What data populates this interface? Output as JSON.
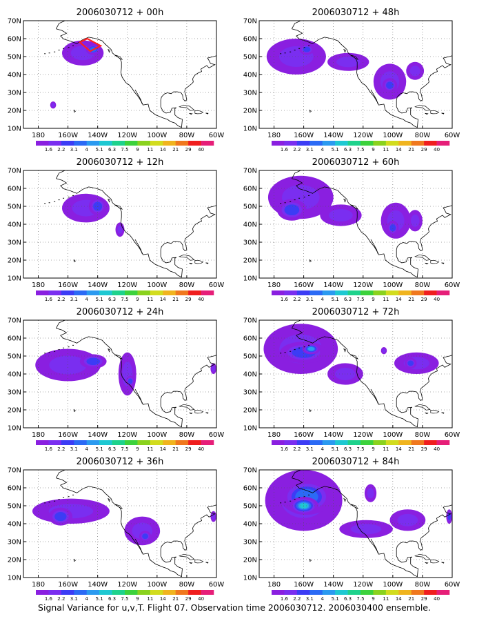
{
  "figure": {
    "caption": "Signal Variance for u,v,T. Flight 07. Observation time 2006030712. 2006030400 ensemble."
  },
  "colorbar": {
    "labels": [
      "1.6",
      "2.2",
      "3.1",
      "4",
      "5.1",
      "6.3",
      "7.5",
      "9",
      "11",
      "14",
      "21",
      "29",
      "40"
    ],
    "colors": [
      "#8a1fe0",
      "#7a2ef0",
      "#3c3cf5",
      "#2b6af5",
      "#2b9af0",
      "#1ec8d2",
      "#1ed28c",
      "#3cd23c",
      "#8ad21e",
      "#d2dc1e",
      "#f0b41e",
      "#f0781e",
      "#f01e1e",
      "#e61e78"
    ]
  },
  "axes": {
    "y_ticks": [
      "70N",
      "60N",
      "50N",
      "40N",
      "30N",
      "20N",
      "10N"
    ],
    "x_ticks": [
      "180",
      "160W",
      "140W",
      "120W",
      "100W",
      "80W",
      "60W"
    ]
  },
  "panels": [
    {
      "title": "2006030712 + 00h",
      "blobs": [
        {
          "lon": -150,
          "lat": 52,
          "rlon": 14,
          "rlat": 7,
          "level": 1
        },
        {
          "lon": -143,
          "lat": 54,
          "rlon": 5,
          "rlat": 3,
          "level": 3
        },
        {
          "lon": -170,
          "lat": 23,
          "rlon": 2,
          "rlat": 2,
          "level": 1
        }
      ],
      "track": [
        [
          -152,
          58
        ],
        [
          -145,
          53
        ],
        [
          -138,
          56
        ],
        [
          -147,
          60
        ]
      ]
    },
    {
      "title": "2006030712 + 12h",
      "blobs": [
        {
          "lon": -148,
          "lat": 49,
          "rlon": 16,
          "rlat": 8,
          "level": 1
        },
        {
          "lon": -140,
          "lat": 50,
          "rlon": 6,
          "rlat": 5,
          "level": 2
        },
        {
          "lon": -125,
          "lat": 37,
          "rlon": 3,
          "rlat": 4,
          "level": 1
        }
      ],
      "track": []
    },
    {
      "title": "2006030712 + 24h",
      "blobs": [
        {
          "lon": -160,
          "lat": 45,
          "rlon": 22,
          "rlat": 9,
          "level": 1
        },
        {
          "lon": -143,
          "lat": 47,
          "rlon": 9,
          "rlat": 4,
          "level": 2
        },
        {
          "lon": -120,
          "lat": 40,
          "rlon": 6,
          "rlat": 12,
          "level": 1
        },
        {
          "lon": -118,
          "lat": 36,
          "rlon": 3,
          "rlat": 3,
          "level": 2
        },
        {
          "lon": -62,
          "lat": 43,
          "rlon": 2,
          "rlat": 3,
          "level": 1
        }
      ],
      "track": []
    },
    {
      "title": "2006030712 + 36h",
      "blobs": [
        {
          "lon": -158,
          "lat": 47,
          "rlon": 26,
          "rlat": 7,
          "level": 1
        },
        {
          "lon": -165,
          "lat": 44,
          "rlon": 8,
          "rlat": 5,
          "level": 2
        },
        {
          "lon": -110,
          "lat": 36,
          "rlon": 12,
          "rlat": 8,
          "level": 1
        },
        {
          "lon": -108,
          "lat": 33,
          "rlon": 4,
          "rlat": 3,
          "level": 2
        },
        {
          "lon": -62,
          "lat": 44,
          "rlon": 2,
          "rlat": 3,
          "level": 1
        }
      ],
      "track": []
    },
    {
      "title": "2006030712 + 48h",
      "blobs": [
        {
          "lon": -165,
          "lat": 50,
          "rlon": 20,
          "rlat": 10,
          "level": 1
        },
        {
          "lon": -158,
          "lat": 54,
          "rlon": 5,
          "rlat": 3,
          "level": 2
        },
        {
          "lon": -130,
          "lat": 47,
          "rlon": 14,
          "rlat": 5,
          "level": 1
        },
        {
          "lon": -102,
          "lat": 36,
          "rlon": 11,
          "rlat": 10,
          "level": 1
        },
        {
          "lon": -102,
          "lat": 34,
          "rlon": 5,
          "rlat": 4,
          "level": 2
        },
        {
          "lon": -85,
          "lat": 42,
          "rlon": 6,
          "rlat": 5,
          "level": 1
        }
      ],
      "track": []
    },
    {
      "title": "2006030712 + 60h",
      "blobs": [
        {
          "lon": -162,
          "lat": 55,
          "rlon": 22,
          "rlat": 12,
          "level": 1
        },
        {
          "lon": -168,
          "lat": 48,
          "rlon": 10,
          "rlat": 6,
          "level": 2
        },
        {
          "lon": -135,
          "lat": 45,
          "rlon": 14,
          "rlat": 6,
          "level": 1
        },
        {
          "lon": -98,
          "lat": 42,
          "rlon": 10,
          "rlat": 10,
          "level": 1
        },
        {
          "lon": -100,
          "lat": 38,
          "rlon": 4,
          "rlat": 4,
          "level": 2
        },
        {
          "lon": -85,
          "lat": 42,
          "rlon": 5,
          "rlat": 6,
          "level": 1
        }
      ],
      "track": []
    },
    {
      "title": "2006030712 + 72h",
      "blobs": [
        {
          "lon": -162,
          "lat": 54,
          "rlon": 25,
          "rlat": 14,
          "level": 1
        },
        {
          "lon": -160,
          "lat": 52,
          "rlon": 16,
          "rlat": 6,
          "level": 2
        },
        {
          "lon": -155,
          "lat": 54,
          "rlon": 6,
          "rlat": 3,
          "level": 4
        },
        {
          "lon": -132,
          "lat": 40,
          "rlon": 12,
          "rlat": 6,
          "level": 1
        },
        {
          "lon": -84,
          "lat": 46,
          "rlon": 15,
          "rlat": 6,
          "level": 1
        },
        {
          "lon": -88,
          "lat": 46,
          "rlon": 4,
          "rlat": 3,
          "level": 2
        },
        {
          "lon": -106,
          "lat": 53,
          "rlon": 2,
          "rlat": 2,
          "level": 1
        }
      ],
      "track": []
    },
    {
      "title": "2006030712 + 84h",
      "blobs": [
        {
          "lon": -160,
          "lat": 53,
          "rlon": 26,
          "rlat": 17,
          "level": 1
        },
        {
          "lon": -158,
          "lat": 55,
          "rlon": 18,
          "rlat": 10,
          "level": 3
        },
        {
          "lon": -160,
          "lat": 50,
          "rlon": 10,
          "rlat": 5,
          "level": 5
        },
        {
          "lon": -118,
          "lat": 37,
          "rlon": 18,
          "rlat": 5,
          "level": 1
        },
        {
          "lon": -90,
          "lat": 42,
          "rlon": 12,
          "rlat": 6,
          "level": 1
        },
        {
          "lon": -115,
          "lat": 57,
          "rlon": 4,
          "rlat": 5,
          "level": 1
        },
        {
          "lon": -62,
          "lat": 44,
          "rlon": 2,
          "rlat": 4,
          "level": 2
        }
      ],
      "track": []
    }
  ]
}
